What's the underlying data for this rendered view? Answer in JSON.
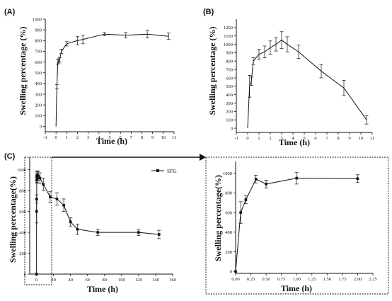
{
  "panels": [
    {
      "id": "A",
      "label": "(A)",
      "xlabel": "Time (h)",
      "ylabel": "Swelling percentage (%)",
      "xlim": [
        -1,
        11
      ],
      "ylim": [
        -50,
        1000
      ],
      "xticks": [
        -1,
        0,
        1,
        2,
        3,
        4,
        5,
        6,
        7,
        8,
        9,
        10,
        11
      ],
      "yticks": [
        0,
        100,
        200,
        300,
        400,
        500,
        600,
        700,
        800,
        900,
        1000
      ]
    },
    {
      "id": "B",
      "label": "(B)",
      "xlabel": "Time (h)",
      "ylabel": "Swelling percentage (%)",
      "xlim": [
        -1,
        11
      ],
      "ylim": [
        -50,
        1300
      ],
      "xticks": [
        -1,
        0,
        1,
        2,
        3,
        4,
        5,
        6,
        7,
        8,
        9,
        10,
        11
      ],
      "yticks": [
        0,
        100,
        200,
        300,
        400,
        500,
        600,
        700,
        800,
        900,
        1000,
        1100,
        1200
      ]
    },
    {
      "id": "C",
      "label": "(C)",
      "xlabel": "Time (h)",
      "ylabel": "Swelling percentage(%)",
      "legend": "SFG",
      "xlim": [
        -8,
        160
      ],
      "ylim": [
        0,
        1120
      ],
      "xticks": [
        0,
        20,
        40,
        60,
        80,
        100,
        120,
        140,
        160
      ],
      "xtick_labels": [
        "0",
        "20",
        "40",
        "60",
        "80",
        "100",
        "120",
        "140",
        "160"
      ],
      "yticks": [
        0,
        200,
        400,
        600,
        800,
        1000
      ]
    },
    {
      "id": "C-inset",
      "label": "",
      "xlabel": "Time (h)",
      "ylabel": "Swelling percentage(%)",
      "xlim": [
        0,
        2.25
      ],
      "ylim": [
        -20,
        1120
      ],
      "xticks": [
        0,
        0.25,
        0.5,
        0.75,
        1.0,
        1.25,
        1.5,
        1.75,
        2.0,
        2.25
      ],
      "xtick_labels": [
        "0.00",
        "0.25",
        "0.50",
        "0.75",
        "1.00",
        "1.25",
        "1.50",
        "1.75",
        "2.00",
        "2.25"
      ],
      "yticks": [
        0,
        200,
        400,
        600,
        800,
        1000
      ]
    }
  ],
  "chart_data": [
    {
      "type": "line",
      "title": "(A)",
      "xlabel": "Time (h)",
      "ylabel": "Swelling percentage (%)",
      "xlim": [
        -1,
        11
      ],
      "ylim": [
        -50,
        1000
      ],
      "x": [
        0,
        0.08,
        0.17,
        0.25,
        0.33,
        0.5,
        1,
        2,
        2.5,
        4.5,
        6.5,
        8.5,
        10.5
      ],
      "values": [
        0,
        370,
        600,
        610,
        620,
        700,
        770,
        800,
        810,
        860,
        850,
        860,
        840
      ],
      "error": [
        0,
        20,
        20,
        20,
        20,
        20,
        20,
        40,
        40,
        15,
        25,
        35,
        30
      ]
    },
    {
      "type": "line",
      "title": "(B)",
      "xlabel": "Time (h)",
      "ylabel": "Swelling percentage (%)",
      "xlim": [
        -1,
        11
      ],
      "ylim": [
        -50,
        1300
      ],
      "x": [
        0,
        0.17,
        0.33,
        0.5,
        1,
        1.5,
        2,
        2.5,
        3,
        3.5,
        4.5,
        6.5,
        8.5,
        10.5
      ],
      "values": [
        0,
        500,
        560,
        800,
        880,
        910,
        960,
        1000,
        1050,
        1000,
        910,
        680,
        480,
        100
      ],
      "error": [
        0,
        130,
        50,
        40,
        60,
        70,
        80,
        80,
        100,
        90,
        80,
        80,
        90,
        50
      ]
    },
    {
      "type": "line",
      "title": "(C)",
      "xlabel": "Time (h)",
      "ylabel": "Swelling percentage(%)",
      "legend": [
        "SFG"
      ],
      "xlim": [
        -8,
        160
      ],
      "ylim": [
        0,
        1120
      ],
      "x": [
        0,
        0.08,
        0.17,
        0.25,
        0.33,
        0.5,
        1,
        2,
        4,
        8,
        16,
        24,
        32,
        40,
        48,
        72,
        120,
        144
      ],
      "values": [
        0,
        600,
        720,
        940,
        900,
        920,
        950,
        940,
        920,
        860,
        740,
        720,
        660,
        500,
        430,
        400,
        400,
        380
      ],
      "error": [
        0,
        110,
        40,
        40,
        30,
        40,
        40,
        40,
        50,
        60,
        50,
        60,
        60,
        40,
        50,
        30,
        30,
        40
      ]
    },
    {
      "type": "line",
      "title": "",
      "xlabel": "Time (h)",
      "ylabel": "Swelling percentage(%)",
      "xlim": [
        0,
        2.25
      ],
      "ylim": [
        -20,
        1120
      ],
      "x": [
        0,
        0.083,
        0.167,
        0.333,
        0.5,
        1.0,
        2.0
      ],
      "values": [
        0,
        600,
        730,
        940,
        890,
        950,
        945
      ],
      "error": [
        0,
        110,
        40,
        40,
        40,
        60,
        40
      ]
    }
  ]
}
